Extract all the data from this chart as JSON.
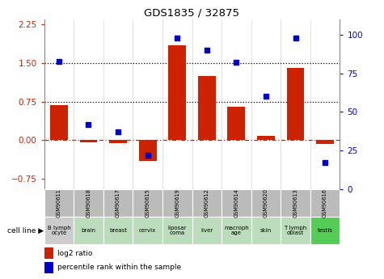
{
  "title": "GDS1835 / 32875",
  "samples": [
    "GSM90611",
    "GSM90618",
    "GSM90617",
    "GSM90615",
    "GSM90619",
    "GSM90612",
    "GSM90614",
    "GSM90620",
    "GSM90613",
    "GSM90616"
  ],
  "cell_lines": [
    "B lymph\nocyte",
    "brain",
    "breast",
    "cervix",
    "liposar\ncoma",
    "liver",
    "macroph\nage",
    "skin",
    "T lymph\noblast",
    "testis"
  ],
  "cell_line_colors": [
    "#cccccc",
    "#aaddaa",
    "#aaddaa",
    "#aaddaa",
    "#aaddaa",
    "#aaddaa",
    "#aaddaa",
    "#aaddaa",
    "#aaddaa",
    "#66cc66"
  ],
  "log2_ratio": [
    0.68,
    -0.04,
    -0.06,
    -0.4,
    1.85,
    1.25,
    0.65,
    0.08,
    1.4,
    -0.07
  ],
  "percentile_rank": [
    83,
    42,
    37,
    22,
    98,
    90,
    82,
    60,
    98,
    17
  ],
  "bar_color": "#cc2200",
  "dot_color": "#0000cc",
  "ylim_left": [
    -0.95,
    2.35
  ],
  "ylim_right": [
    0,
    110
  ],
  "yticks_left": [
    -0.75,
    0,
    0.75,
    1.5,
    2.25
  ],
  "yticks_right": [
    0,
    25,
    50,
    75,
    100
  ],
  "hline_y": [
    0.75,
    1.5
  ],
  "sample_bg_color": "#bbbbbb",
  "dotted_line_color": "#000000",
  "zero_line_color": "#cc2200",
  "bar_width": 0.6
}
